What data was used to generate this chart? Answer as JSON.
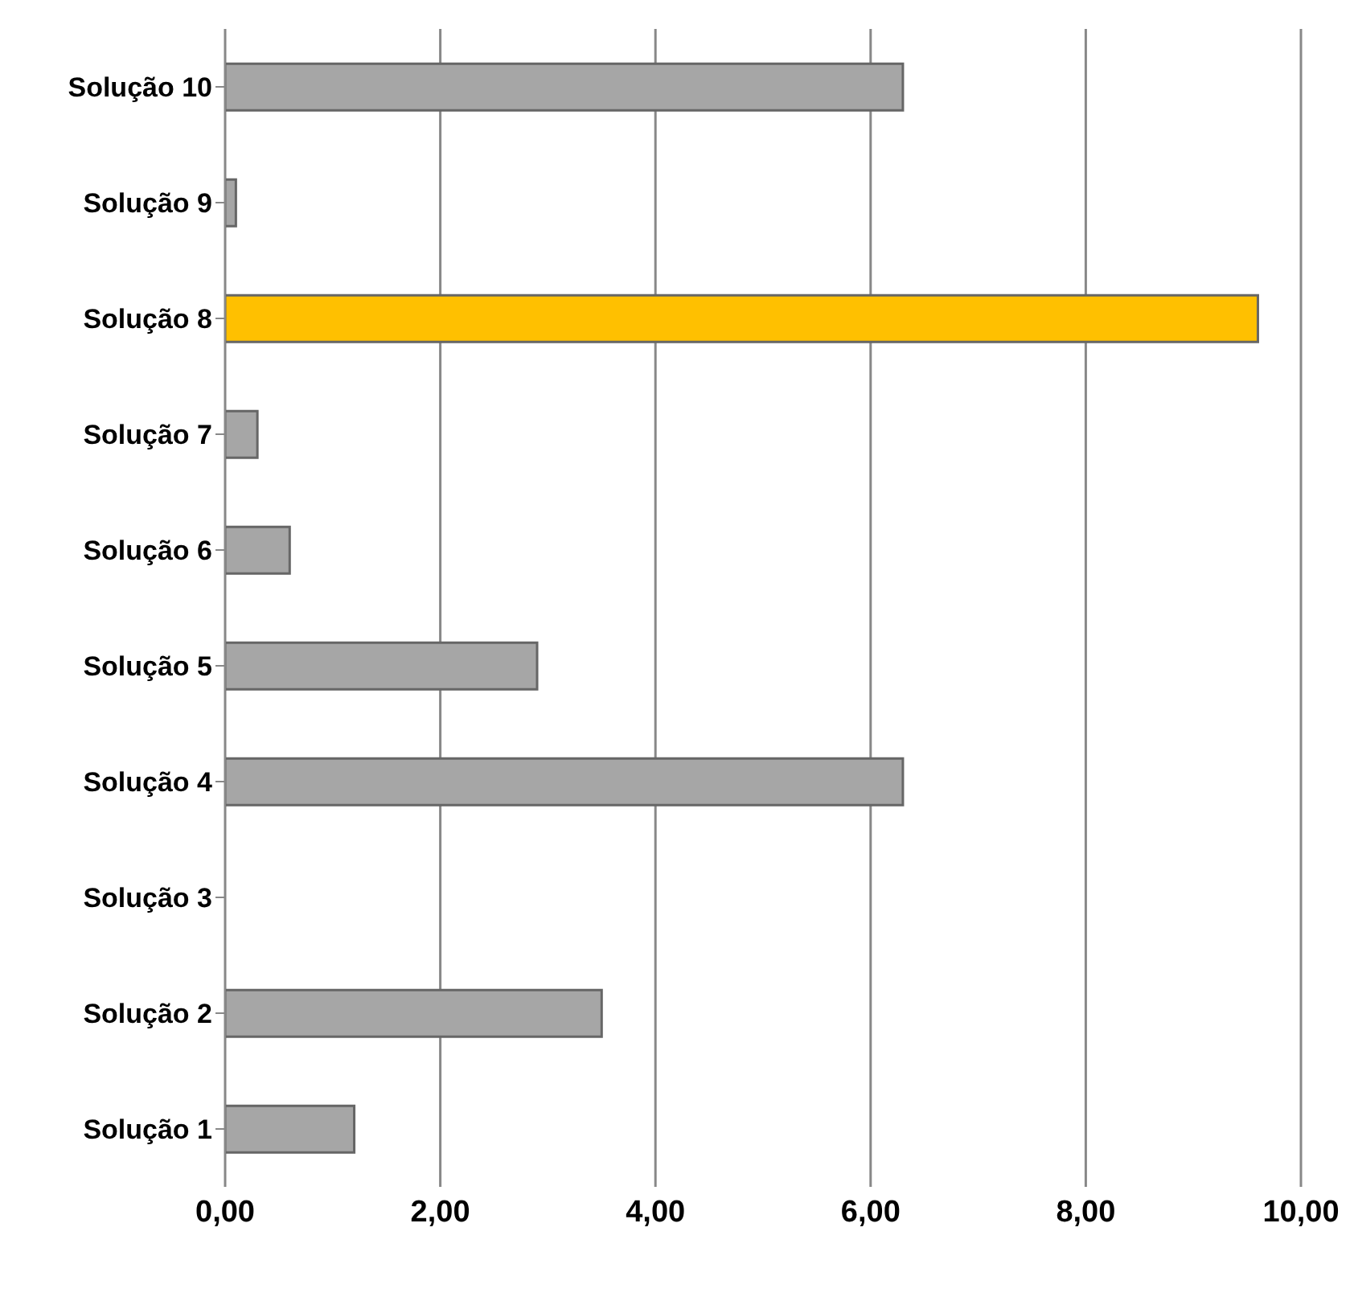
{
  "chart_data": {
    "type": "bar",
    "orientation": "horizontal",
    "categories": [
      "Solução 10",
      "Solução 9",
      "Solução 8",
      "Solução 7",
      "Solução 6",
      "Solução 5",
      "Solução 4",
      "Solução 3",
      "Solução 2",
      "Solução 1"
    ],
    "values": [
      6.3,
      0.1,
      9.6,
      0.3,
      0.6,
      2.9,
      6.3,
      0,
      3.5,
      1.2
    ],
    "colors": [
      "#a6a6a6",
      "#a6a6a6",
      "#ffc000",
      "#a6a6a6",
      "#a6a6a6",
      "#a6a6a6",
      "#a6a6a6",
      "#a6a6a6",
      "#a6a6a6",
      "#a6a6a6"
    ],
    "xlim": [
      0,
      10
    ],
    "xticks": [
      {
        "value": 0,
        "label": "0,00"
      },
      {
        "value": 2,
        "label": "2,00"
      },
      {
        "value": 4,
        "label": "4,00"
      },
      {
        "value": 6,
        "label": "6,00"
      },
      {
        "value": 8,
        "label": "8,00"
      },
      {
        "value": 10,
        "label": "10,00"
      }
    ],
    "grid": "x",
    "legend": false
  }
}
